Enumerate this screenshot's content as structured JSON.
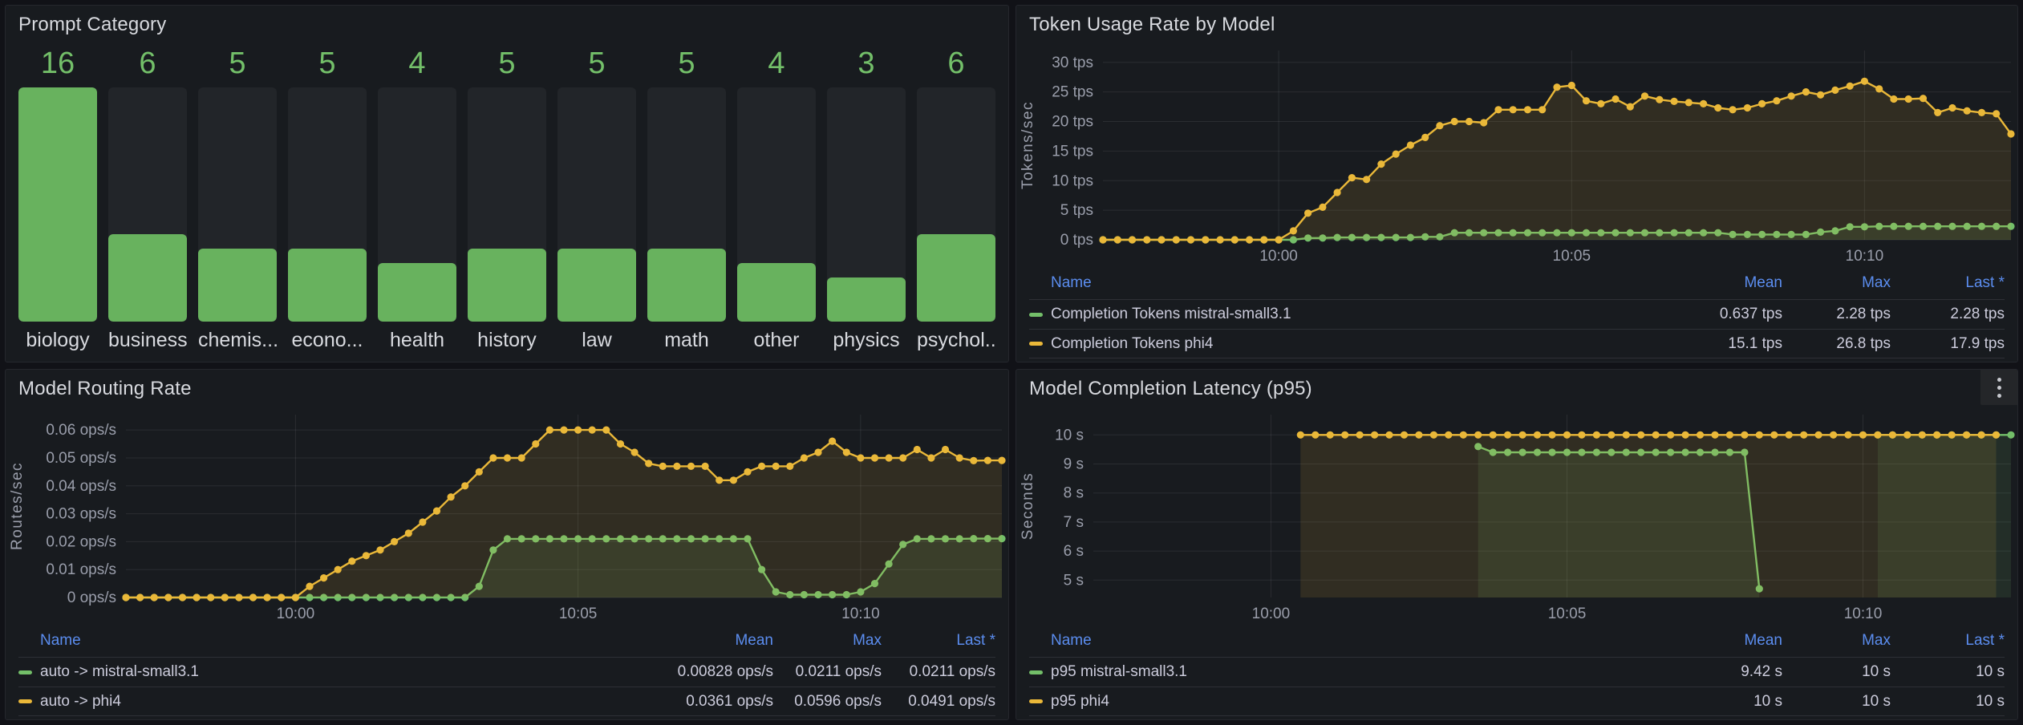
{
  "colors": {
    "green": "#73bf69",
    "yellow": "#eab839",
    "legend_header_blue": "#5b8def",
    "axis_text": "#9a9eab",
    "panel_bg": "#181b1f",
    "page_bg": "#111217",
    "bar_track": "#222529",
    "grid": "rgba(204,204,220,0.10)"
  },
  "legend_columns": {
    "name": "Name",
    "mean": "Mean",
    "max": "Max",
    "last": "Last *"
  },
  "x_axis": {
    "tick_labels": [
      "10:00",
      "10:05",
      "10:10"
    ],
    "tick_minutes": [
      3,
      8,
      13
    ],
    "start_minute": 0,
    "end_minute": 15.5,
    "point_interval_min": 0.25
  },
  "chart_data": [
    {
      "panel": "prompt-category",
      "type": "bar",
      "title": "Prompt Category",
      "categories": [
        "biology",
        "business",
        "chemis...",
        "econo...",
        "health",
        "history",
        "law",
        "math",
        "other",
        "physics",
        "psychol..."
      ],
      "values": [
        16,
        6,
        5,
        5,
        4,
        5,
        5,
        5,
        4,
        3,
        6
      ],
      "ylim": [
        0,
        16
      ]
    },
    {
      "panel": "token-usage",
      "type": "line",
      "title": "Token Usage Rate by Model",
      "ylabel": "Tokens/sec",
      "ylim": [
        0,
        32
      ],
      "yticks": [
        0,
        5,
        10,
        15,
        20,
        25,
        30
      ],
      "ytick_labels": [
        "0 tps",
        "5 tps",
        "10 tps",
        "15 tps",
        "20 tps",
        "25 tps",
        "30 tps"
      ],
      "left_gutter": 108,
      "series": [
        {
          "name": "Completion Tokens mistral-small3.1",
          "color": "#73bf69",
          "values": [
            0,
            0,
            0,
            0,
            0,
            0,
            0,
            0,
            0,
            0,
            0,
            0,
            0,
            0,
            0.3,
            0.3,
            0.4,
            0.4,
            0.4,
            0.4,
            0.4,
            0.4,
            0.5,
            0.5,
            1.2,
            1.2,
            1.2,
            1.2,
            1.2,
            1.2,
            1.2,
            1.2,
            1.2,
            1.2,
            1.2,
            1.2,
            1.2,
            1.2,
            1.2,
            1.2,
            1.2,
            1.2,
            1.2,
            0.9,
            0.9,
            0.9,
            0.9,
            0.9,
            0.9,
            1.3,
            1.5,
            2.2,
            2.2,
            2.28,
            2.28,
            2.28,
            2.28,
            2.28,
            2.28,
            2.28,
            2.28,
            2.28,
            2.28
          ]
        },
        {
          "name": "Completion Tokens phi4",
          "color": "#eab839",
          "values": [
            0,
            0,
            0,
            0,
            0,
            0,
            0,
            0,
            0,
            0,
            0,
            0,
            0,
            1.5,
            4.5,
            5.5,
            8,
            10.5,
            10.2,
            12.8,
            14.5,
            16,
            17.3,
            19.3,
            20,
            20,
            19.8,
            22,
            22,
            22,
            22,
            25.8,
            26.1,
            23.5,
            23,
            23.8,
            22.5,
            24.3,
            23.7,
            23.4,
            23.2,
            23,
            22.3,
            22,
            22.3,
            23,
            23.5,
            24.3,
            25,
            24.5,
            25.3,
            26,
            26.8,
            25.5,
            23.8,
            23.8,
            23.9,
            21.5,
            22.3,
            21.8,
            21.5,
            21.3,
            17.9
          ]
        }
      ],
      "legend_rows": [
        {
          "name": "Completion Tokens mistral-small3.1",
          "color": "#73bf69",
          "mean": "0.637 tps",
          "max": "2.28 tps",
          "last": "2.28 tps"
        },
        {
          "name": "Completion Tokens phi4",
          "color": "#eab839",
          "mean": "15.1 tps",
          "max": "26.8 tps",
          "last": "17.9 tps"
        }
      ]
    },
    {
      "panel": "model-routing-rate",
      "type": "line",
      "title": "Model Routing Rate",
      "ylabel": "Routes/sec",
      "ylim": [
        0,
        0.0655
      ],
      "yticks": [
        0,
        0.01,
        0.02,
        0.03,
        0.04,
        0.05,
        0.06
      ],
      "ytick_labels": [
        "0 ops/s",
        "0.01 ops/s",
        "0.02 ops/s",
        "0.03 ops/s",
        "0.04 ops/s",
        "0.05 ops/s",
        "0.06 ops/s"
      ],
      "left_gutter": 150,
      "series": [
        {
          "name": "auto -> mistral-small3.1",
          "color": "#73bf69",
          "values": [
            0,
            0,
            0,
            0,
            0,
            0,
            0,
            0,
            0,
            0,
            0,
            0,
            0,
            0,
            0,
            0,
            0,
            0,
            0,
            0,
            0,
            0,
            0,
            0,
            0,
            0.004,
            0.017,
            0.021,
            0.021,
            0.021,
            0.021,
            0.021,
            0.021,
            0.021,
            0.021,
            0.021,
            0.021,
            0.021,
            0.021,
            0.021,
            0.021,
            0.021,
            0.021,
            0.021,
            0.021,
            0.01,
            0.002,
            0.001,
            0.001,
            0.001,
            0.001,
            0.001,
            0.002,
            0.005,
            0.012,
            0.019,
            0.021,
            0.021,
            0.021,
            0.021,
            0.0211,
            0.0211,
            0.0211
          ]
        },
        {
          "name": "auto -> phi4",
          "color": "#eab839",
          "values": [
            0,
            0,
            0,
            0,
            0,
            0,
            0,
            0,
            0,
            0,
            0,
            0,
            0,
            0.004,
            0.007,
            0.01,
            0.013,
            0.015,
            0.017,
            0.02,
            0.023,
            0.027,
            0.031,
            0.036,
            0.04,
            0.045,
            0.05,
            0.05,
            0.05,
            0.055,
            0.06,
            0.06,
            0.06,
            0.06,
            0.06,
            0.055,
            0.052,
            0.048,
            0.047,
            0.047,
            0.047,
            0.047,
            0.042,
            0.042,
            0.045,
            0.047,
            0.047,
            0.047,
            0.05,
            0.052,
            0.056,
            0.052,
            0.05,
            0.05,
            0.05,
            0.05,
            0.053,
            0.05,
            0.053,
            0.05,
            0.049,
            0.0491,
            0.0491
          ]
        }
      ],
      "legend_rows": [
        {
          "name": "auto -> mistral-small3.1",
          "color": "#73bf69",
          "mean": "0.00828 ops/s",
          "max": "0.0211 ops/s",
          "last": "0.0211 ops/s"
        },
        {
          "name": "auto -> phi4",
          "color": "#eab839",
          "mean": "0.0361 ops/s",
          "max": "0.0596 ops/s",
          "last": "0.0491 ops/s"
        }
      ]
    },
    {
      "panel": "model-completion-latency",
      "type": "line",
      "title": "Model Completion Latency (p95)",
      "ylabel": "Seconds",
      "ylim": [
        4.4,
        10.7
      ],
      "yticks": [
        5,
        6,
        7,
        8,
        9,
        10
      ],
      "ytick_labels": [
        "5 s",
        "6 s",
        "7 s",
        "8 s",
        "9 s",
        "10 s"
      ],
      "left_gutter": 96,
      "series": [
        {
          "name": "p95 mistral-small3.1",
          "color": "#73bf69",
          "values": [
            null,
            null,
            null,
            null,
            null,
            null,
            null,
            null,
            null,
            null,
            null,
            null,
            null,
            null,
            null,
            null,
            null,
            null,
            null,
            null,
            null,
            null,
            null,
            null,
            null,
            null,
            9.6,
            9.4,
            9.4,
            9.4,
            9.4,
            9.4,
            9.4,
            9.4,
            9.4,
            9.4,
            9.4,
            9.4,
            9.4,
            9.4,
            9.4,
            9.4,
            9.4,
            9.4,
            9.4,
            4.7,
            null,
            null,
            null,
            null,
            null,
            null,
            null,
            10,
            10,
            10,
            10,
            10,
            10,
            10,
            10,
            10,
            10
          ]
        },
        {
          "name": "p95 phi4",
          "color": "#eab839",
          "values": [
            null,
            null,
            null,
            null,
            null,
            null,
            null,
            null,
            null,
            null,
            null,
            null,
            null,
            null,
            10,
            10,
            10,
            10,
            10,
            10,
            10,
            10,
            10,
            10,
            10,
            10,
            10,
            10,
            10,
            10,
            10,
            10,
            10,
            10,
            10,
            10,
            10,
            10,
            10,
            10,
            10,
            10,
            10,
            10,
            10,
            10,
            10,
            10,
            10,
            10,
            10,
            10,
            10,
            10,
            10,
            10,
            10,
            10,
            10,
            10,
            10,
            10
          ]
        }
      ],
      "legend_rows": [
        {
          "name": "p95 mistral-small3.1",
          "color": "#73bf69",
          "mean": "9.42 s",
          "max": "10 s",
          "last": "10 s"
        },
        {
          "name": "p95 phi4",
          "color": "#eab839",
          "mean": "10 s",
          "max": "10 s",
          "last": "10 s"
        }
      ]
    }
  ]
}
